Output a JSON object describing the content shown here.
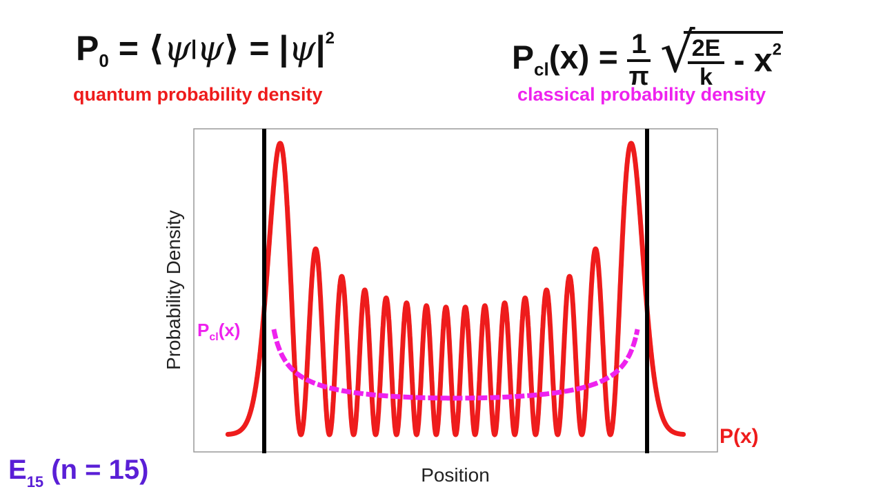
{
  "header": {
    "quantum_equation": {
      "lhs_symbol": "P",
      "lhs_subscript": "0",
      "equals": "=",
      "bra_ket_left": "⟨",
      "psi": "ψ",
      "bar": "|",
      "bra_ket_right": "⟩",
      "abs_left": "|",
      "abs_right": "|",
      "power": "2",
      "label": "quantum probability density"
    },
    "classical_equation": {
      "lhs_symbol": "P",
      "lhs_subscript": "cl",
      "lhs_arg": "(x)",
      "equals": "=",
      "frac_num": "1",
      "frac_den": "π",
      "radical": "√",
      "inner_num": "2E",
      "inner_den": "k",
      "minus_term": "- x",
      "power": "2",
      "label": "classical probability density"
    }
  },
  "energy_label": {
    "symbol": "E",
    "subscript": "15",
    "suffix": "(n = 15)"
  },
  "colors": {
    "quantum": "#ee1c1c",
    "classical": "#ee22ee",
    "energy": "#5a1fd6",
    "walls": "#000000",
    "frame": "#999999"
  },
  "chart_data": {
    "type": "line",
    "xlabel": "Position",
    "ylabel": "Probability Density",
    "quantum_number": 15,
    "series": [
      {
        "name": "P(x)",
        "label": "P(x)",
        "kind": "quantum |ψ₁₅|²",
        "color": "#ee1c1c"
      },
      {
        "name": "P_cl(x)",
        "label_main": "P",
        "label_sub": "cl",
        "label_arg": "(x)",
        "kind": "classical",
        "color": "#ee22ee",
        "style": "dashed"
      }
    ],
    "classical_turning_points": [
      -1,
      1
    ],
    "x_range": [
      -1.19,
      1.19
    ],
    "walls": [
      "left classical turning point",
      "right classical turning point"
    ],
    "grid": false
  }
}
